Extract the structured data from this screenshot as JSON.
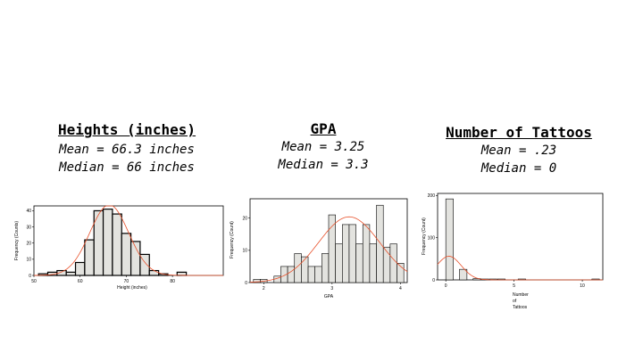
{
  "panels": [
    {
      "title": "Heights (inches)",
      "mean": "Mean = 66.3 inches",
      "median": "Median = 66 inches"
    },
    {
      "title": "GPA",
      "mean": "Mean = 3.25",
      "median": "Median = 3.3"
    },
    {
      "title": "Number of Tattoos",
      "mean": "Mean = .23",
      "median": "Median = 0"
    }
  ],
  "colors": {
    "bar_fill": "#e3e3df",
    "bar_stroke": "#000000",
    "curve": "#e8502a"
  },
  "chart_data": [
    {
      "type": "bar",
      "xlabel": "Height (inches)",
      "ylabel": "Frequency (Counts)",
      "xlim": [
        50,
        91
      ],
      "ylim": [
        0,
        43
      ],
      "xticks": [
        50,
        60,
        70,
        80
      ],
      "yticks": [
        0,
        10,
        20,
        30,
        40
      ],
      "bin_width": 2,
      "bins_start": [
        51,
        53,
        55,
        57,
        59,
        61,
        63,
        65,
        67,
        69,
        71,
        73,
        75,
        77,
        79,
        81
      ],
      "values": [
        1,
        2,
        3,
        2,
        8,
        22,
        40,
        41,
        38,
        26,
        21,
        13,
        3,
        1,
        0,
        2
      ],
      "curve": {
        "mean": 66.3,
        "sd": 4.2,
        "n": 230
      },
      "grid": false,
      "legend": "none"
    },
    {
      "type": "bar",
      "xlabel": "GPA",
      "ylabel": "Frequency (Count)",
      "xlim": [
        1.8,
        4.1
      ],
      "ylim": [
        0,
        26
      ],
      "xticks": [
        2,
        3,
        4
      ],
      "yticks": [
        0,
        10,
        20
      ],
      "bin_width": 0.1,
      "bins_start": [
        1.85,
        1.95,
        2.05,
        2.15,
        2.25,
        2.35,
        2.45,
        2.55,
        2.65,
        2.75,
        2.85,
        2.95,
        3.05,
        3.15,
        3.25,
        3.35,
        3.45,
        3.55,
        3.65,
        3.75,
        3.85,
        3.95
      ],
      "values": [
        1,
        1,
        0,
        2,
        5,
        5,
        9,
        8,
        5,
        5,
        9,
        21,
        12,
        18,
        18,
        12,
        18,
        12,
        24,
        11,
        12,
        6
      ],
      "curve": {
        "mean": 3.25,
        "sd": 0.45,
        "n": 230
      },
      "grid": false,
      "legend": "none"
    },
    {
      "type": "bar",
      "xlabel": "Number\nof\nTattoos",
      "ylabel": "Frequency (Count)",
      "xlim": [
        -0.6,
        11.5
      ],
      "ylim": [
        0,
        205
      ],
      "xticks": [
        0,
        5,
        10
      ],
      "yticks": [
        0,
        100,
        200
      ],
      "bin_width": 0.55,
      "bins_start": [
        0,
        1,
        2,
        2.6,
        3.2,
        3.8,
        5.3,
        10.7
      ],
      "values": [
        192,
        25,
        3,
        2,
        2,
        1,
        1,
        2
      ],
      "curve": {
        "mean": 0.23,
        "sd": 0.9,
        "n": 230
      },
      "grid": false,
      "legend": "none"
    }
  ]
}
